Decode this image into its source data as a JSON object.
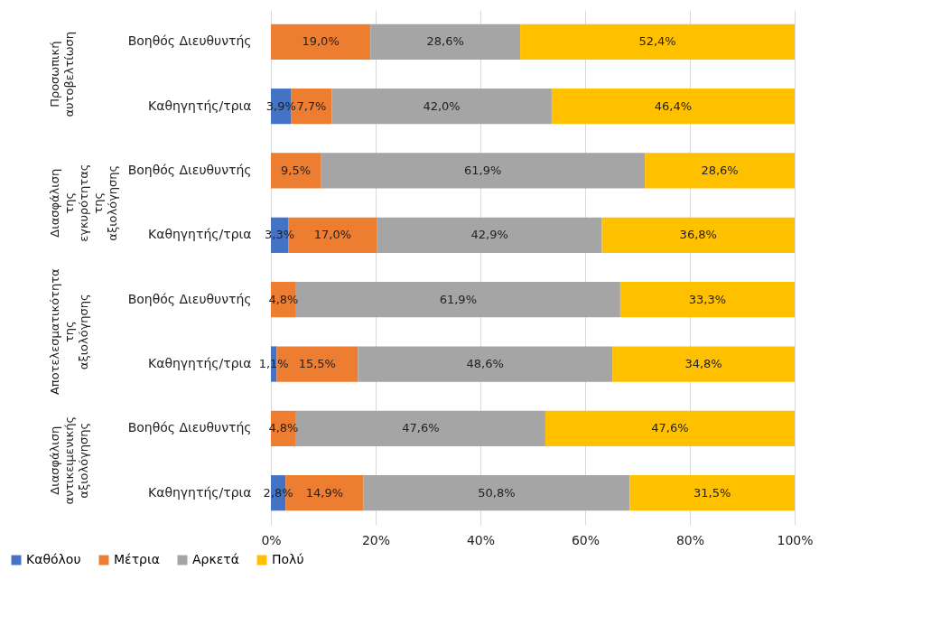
{
  "chart_data": {
    "type": "bar",
    "orientation": "horizontal",
    "stacked": true,
    "categories": [
      "Βοηθός Διευθυντής",
      "Καθηγητής/τρια",
      "Βοηθός Διευθυντής",
      "Καθηγητής/τρια",
      "Βοηθός Διευθυντής",
      "Καθηγητής/τρια",
      "Βοηθός Διευθυντής",
      "Καθηγητής/τρια"
    ],
    "series": [
      {
        "name": "Καθόλου",
        "color": "#4472c4",
        "values": [
          0,
          3.9,
          0,
          3.3,
          0,
          1.1,
          0,
          2.8
        ],
        "value_labels": [
          null,
          "3,9%",
          null,
          "3,3%",
          null,
          "1,1%",
          null,
          "2,8%"
        ]
      },
      {
        "name": "Μέτρια",
        "color": "#ed7d31",
        "values": [
          19.0,
          7.7,
          9.5,
          17.0,
          4.8,
          15.5,
          4.8,
          14.9
        ],
        "value_labels": [
          "19,0%",
          "7,7%",
          "9,5%",
          "17,0%",
          "4,8%",
          "15,5%",
          "4,8%",
          "14,9%"
        ]
      },
      {
        "name": "Αρκετά",
        "color": "#a5a5a5",
        "values": [
          28.6,
          42.0,
          61.9,
          42.9,
          61.9,
          48.6,
          47.6,
          50.8
        ],
        "value_labels": [
          "28,6%",
          "42,0%",
          "61,9%",
          "42,9%",
          "61,9%",
          "48,6%",
          "47,6%",
          "50,8%"
        ]
      },
      {
        "name": "Πολύ",
        "color": "#ffc000",
        "values": [
          52.4,
          46.4,
          28.6,
          36.8,
          33.3,
          34.8,
          47.6,
          31.5
        ],
        "value_labels": [
          "52,4%",
          "46,4%",
          "28,6%",
          "36,8%",
          "33,3%",
          "34,8%",
          "47,6%",
          "31,5%"
        ]
      }
    ],
    "annotations": [
      "Προσωπική αυτοβελτίωση",
      "Διασφάλιση της εγκυρότητας της αξιολόγησης",
      "Αποτελεσματικότητα της αξιολόγησης",
      "Διασφάλιση αντικειμενικής αξιολόγησης"
    ],
    "xlim": [
      0,
      100
    ],
    "xticks": [
      {
        "value": 0,
        "label": "0%"
      },
      {
        "value": 20,
        "label": "20%"
      },
      {
        "value": 40,
        "label": "40%"
      },
      {
        "value": 60,
        "label": "60%"
      },
      {
        "value": 80,
        "label": "80%"
      },
      {
        "value": 100,
        "label": "100%"
      }
    ],
    "grid": "x",
    "legend": "bottom"
  }
}
